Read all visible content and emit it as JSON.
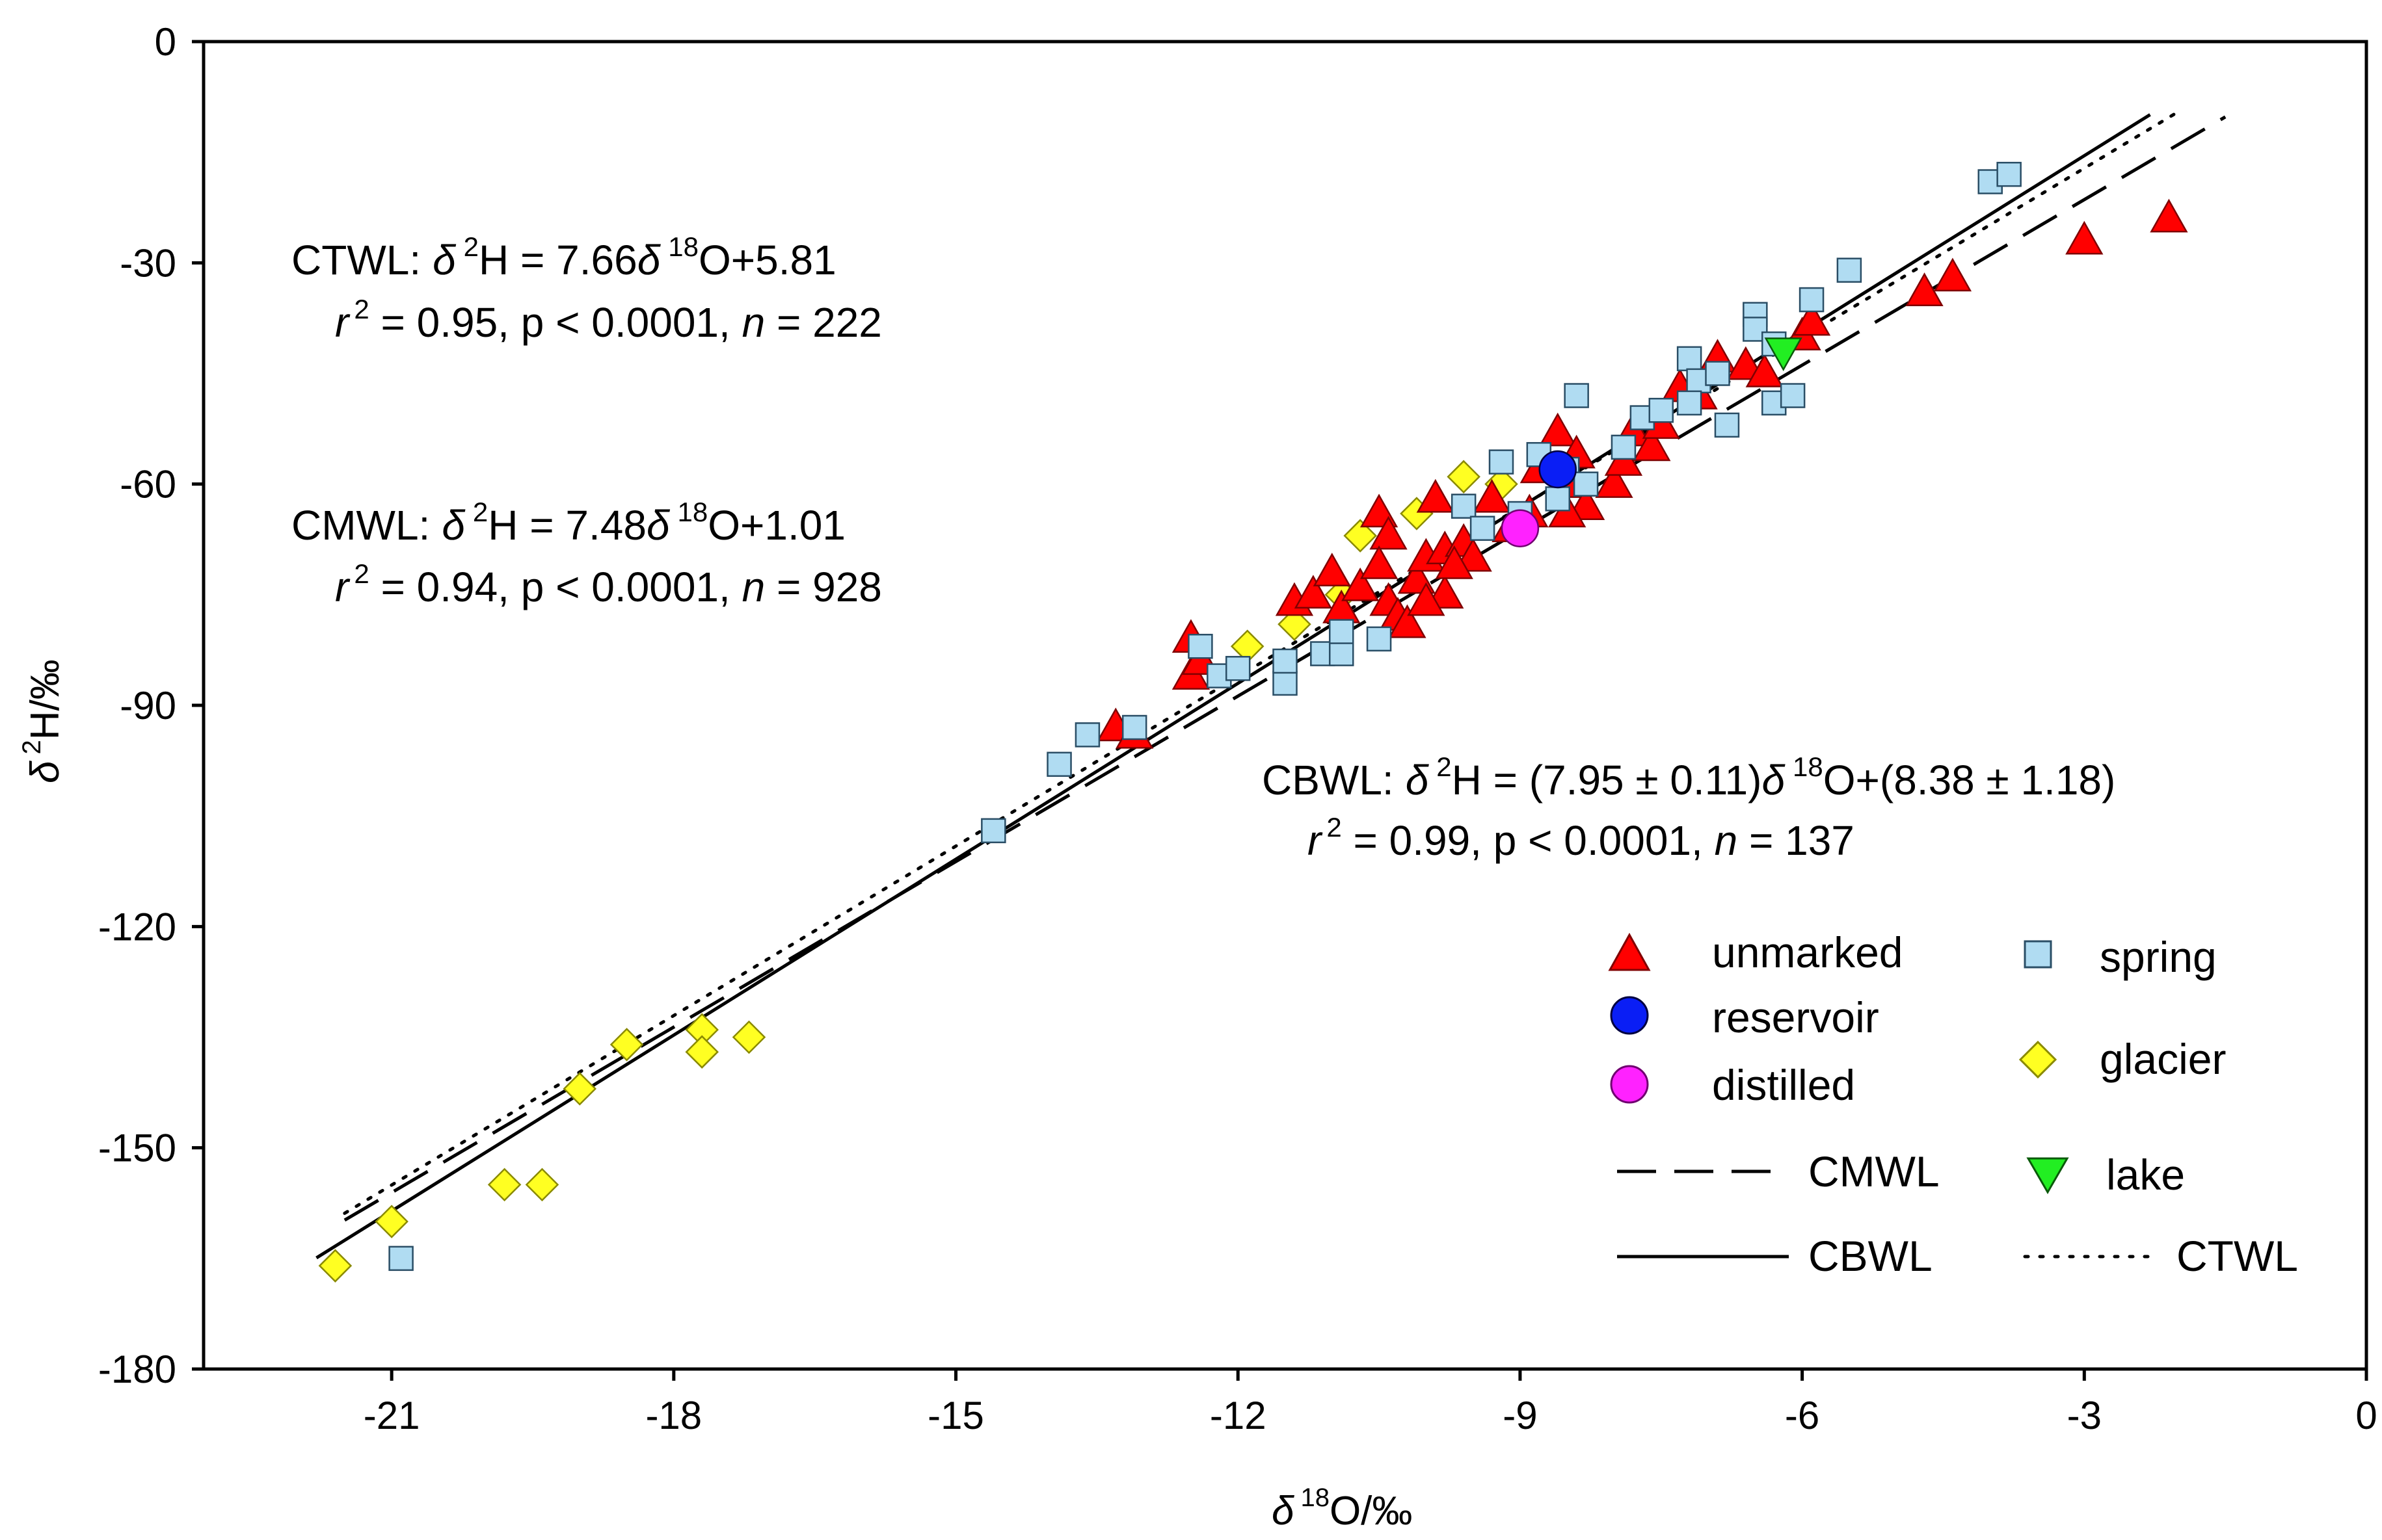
{
  "chart_data": {
    "type": "scatter",
    "xlabel": {
      "symbol": "δ",
      "sup": "18",
      "rest": "O/‰"
    },
    "ylabel": {
      "symbol": "δ",
      "sup": "2",
      "rest": "H/‰"
    },
    "xlim": [
      -23,
      0
    ],
    "ylim": [
      -180,
      0
    ],
    "x_ticks": [
      -21,
      -18,
      -15,
      -12,
      -9,
      -6,
      -3,
      0
    ],
    "y_ticks": [
      0,
      -30,
      -60,
      -90,
      -120,
      -150,
      -180
    ],
    "x_tick_labels": [
      "-21",
      "-18",
      "-15",
      "-12",
      "-9",
      "-6",
      "-3",
      "0"
    ],
    "y_tick_labels": [
      "0",
      "-30",
      "-60",
      "-90",
      "-120",
      "-150",
      "-180"
    ],
    "lines": [
      {
        "name": "CMWL",
        "slope": 7.48,
        "intercept": 1.01,
        "x_range": [
          -21.5,
          -1.5
        ],
        "style": "dashed"
      },
      {
        "name": "CBWL",
        "slope": 7.95,
        "intercept": 8.38,
        "x_range": [
          -21.8,
          -2.3
        ],
        "style": "solid"
      },
      {
        "name": "CTWL",
        "slope": 7.66,
        "intercept": 5.81,
        "x_range": [
          -21.5,
          -2.0
        ],
        "style": "dotted"
      }
    ],
    "equations": {
      "ctwl": {
        "name": "CTWL:",
        "sym": "δ",
        "sup1": "2",
        "mid": "H = 7.66",
        "sym2": "δ",
        "sup2": "18",
        "rest": "O+5.81",
        "r": "r",
        "rsup": "2",
        "stats1": " = 0.95, p < 0.0001, ",
        "n": "n",
        "stats2": " = 222"
      },
      "cmwl": {
        "name": "CMWL:",
        "sym": "δ",
        "sup1": "2",
        "mid": "H = 7.48",
        "sym2": "δ",
        "sup2": "18",
        "rest": "O+1.01",
        "r": "r",
        "rsup": "2",
        "stats1": " = 0.94, p < 0.0001, ",
        "n": "n",
        "stats2": " = 928"
      },
      "cbwl": {
        "name": "CBWL:",
        "sym": "δ",
        "sup1": "2",
        "mid": "H = (7.95 ± 0.11)",
        "sym2": "δ",
        "sup2": "18",
        "rest": "O+(8.38 ± 1.18)",
        "r": "r",
        "rsup": "2",
        "stats1": " = 0.99, p < 0.0001, ",
        "n": "n",
        "stats2": " = 137"
      }
    },
    "legend": {
      "unmarked": "unmarked",
      "spring": "spring",
      "reservoir": "reservoir",
      "glacier": "glacier",
      "distilled": "distilled",
      "cmwl": "CMWL",
      "lake": "lake",
      "cbwl": "CBWL",
      "ctwl": "CTWL"
    },
    "colors": {
      "unmarked": "#ff0000",
      "spring": "#b0dcf2",
      "reservoir": "#0a1ef5",
      "glacier": "#ffff22",
      "distilled": "#ff22ff",
      "lake": "#22ee22"
    },
    "series": [
      {
        "name": "unmarked",
        "marker": "triangle",
        "points": [
          [
            -12.5,
            -81
          ],
          [
            -12.5,
            -86
          ],
          [
            -12.4,
            -84
          ],
          [
            -11.4,
            -76
          ],
          [
            -11.2,
            -75
          ],
          [
            -11.0,
            -72
          ],
          [
            -10.9,
            -77
          ],
          [
            -10.7,
            -74
          ],
          [
            -10.5,
            -64
          ],
          [
            -10.4,
            -67
          ],
          [
            -10.5,
            -71
          ],
          [
            -10.4,
            -76
          ],
          [
            -10.3,
            -78
          ],
          [
            -10.2,
            -79
          ],
          [
            -10.1,
            -73
          ],
          [
            -10.0,
            -70
          ],
          [
            -9.9,
            -62
          ],
          [
            -9.8,
            -75
          ],
          [
            -9.8,
            -69
          ],
          [
            -9.6,
            -68
          ],
          [
            -9.5,
            -70
          ],
          [
            -9.3,
            -62
          ],
          [
            -9.1,
            -66
          ],
          [
            -8.9,
            -64
          ],
          [
            -8.8,
            -58
          ],
          [
            -8.6,
            -53
          ],
          [
            -8.5,
            -60
          ],
          [
            -8.4,
            -56
          ],
          [
            -8.3,
            -63
          ],
          [
            -8.0,
            -60
          ],
          [
            -7.9,
            -57
          ],
          [
            -7.8,
            -53
          ],
          [
            -7.6,
            -55
          ],
          [
            -7.5,
            -52
          ],
          [
            -7.3,
            -47
          ],
          [
            -7.1,
            -48
          ],
          [
            -6.9,
            -43
          ],
          [
            -6.6,
            -44
          ],
          [
            -6.4,
            -45
          ],
          [
            -6.0,
            -40
          ],
          [
            -5.9,
            -38
          ],
          [
            -4.7,
            -34
          ],
          [
            -4.4,
            -32
          ],
          [
            -3.0,
            -27
          ],
          [
            -2.1,
            -24
          ],
          [
            -13.3,
            -93
          ],
          [
            -13.1,
            -94
          ],
          [
            -9.7,
            -71
          ],
          [
            -10.0,
            -76
          ],
          [
            -8.5,
            -64
          ]
        ]
      },
      {
        "name": "spring",
        "marker": "square",
        "points": [
          [
            -20.9,
            -165
          ],
          [
            -14.6,
            -107
          ],
          [
            -13.9,
            -98
          ],
          [
            -13.6,
            -94
          ],
          [
            -13.1,
            -93
          ],
          [
            -12.4,
            -82
          ],
          [
            -12.2,
            -86
          ],
          [
            -12.0,
            -85
          ],
          [
            -11.5,
            -87
          ],
          [
            -11.5,
            -84
          ],
          [
            -11.1,
            -83
          ],
          [
            -10.9,
            -83
          ],
          [
            -10.9,
            -80
          ],
          [
            -10.5,
            -81
          ],
          [
            -9.6,
            -63
          ],
          [
            -9.4,
            -66
          ],
          [
            -9.2,
            -57
          ],
          [
            -9.0,
            -64
          ],
          [
            -8.8,
            -56
          ],
          [
            -8.6,
            -62
          ],
          [
            -8.5,
            -58
          ],
          [
            -8.4,
            -48
          ],
          [
            -8.3,
            -60
          ],
          [
            -7.9,
            -55
          ],
          [
            -7.7,
            -51
          ],
          [
            -7.5,
            -50
          ],
          [
            -7.2,
            -43
          ],
          [
            -7.1,
            -46
          ],
          [
            -7.2,
            -49
          ],
          [
            -6.9,
            -45
          ],
          [
            -6.8,
            -52
          ],
          [
            -6.5,
            -37
          ],
          [
            -6.5,
            -39
          ],
          [
            -6.3,
            -41
          ],
          [
            -6.3,
            -49
          ],
          [
            -6.1,
            -48
          ],
          [
            -5.9,
            -35
          ],
          [
            -5.5,
            -31
          ],
          [
            -4.0,
            -19
          ],
          [
            -3.8,
            -18
          ]
        ]
      },
      {
        "name": "reservoir",
        "marker": "circle",
        "points": [
          [
            -8.6,
            -58
          ]
        ]
      },
      {
        "name": "distilled",
        "marker": "circle",
        "points": [
          [
            -9.0,
            -66
          ]
        ]
      },
      {
        "name": "glacier",
        "marker": "diamond",
        "points": [
          [
            -21.6,
            -166
          ],
          [
            -21.0,
            -160
          ],
          [
            -19.8,
            -155
          ],
          [
            -19.4,
            -155
          ],
          [
            -19.0,
            -142
          ],
          [
            -18.5,
            -136
          ],
          [
            -17.7,
            -134
          ],
          [
            -17.7,
            -137
          ],
          [
            -17.2,
            -135
          ],
          [
            -11.9,
            -82
          ],
          [
            -11.4,
            -79
          ],
          [
            -10.9,
            -75
          ],
          [
            -10.7,
            -67
          ],
          [
            -10.1,
            -64
          ],
          [
            -9.6,
            -59
          ],
          [
            -9.2,
            -60
          ]
        ]
      },
      {
        "name": "lake",
        "marker": "triangle-down",
        "points": [
          [
            -6.2,
            -42
          ]
        ]
      }
    ]
  }
}
